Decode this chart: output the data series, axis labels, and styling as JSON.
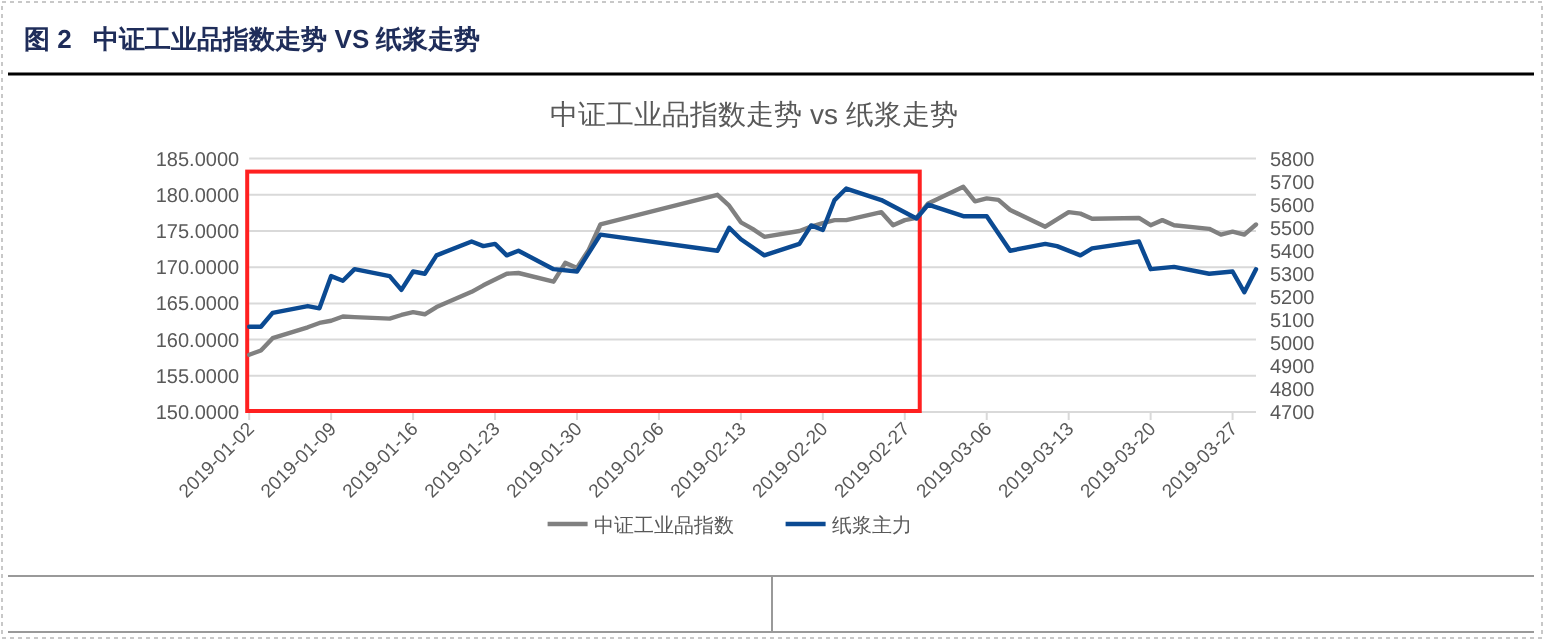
{
  "chart_data": {
    "type": "line",
    "title": "图 2   中证工业品指数走势 VS 纸浆走势",
    "subtitle": "中证工业品指数走势 vs 纸浆走势",
    "xlim": [
      "2019-01-02",
      "2019-03-29"
    ],
    "xticks": [
      "2019-01-02",
      "2019-01-09",
      "2019-01-16",
      "2019-01-23",
      "2019-01-30",
      "2019-02-06",
      "2019-02-13",
      "2019-02-20",
      "2019-02-27",
      "2019-03-06",
      "2019-03-13",
      "2019-03-20",
      "2019-03-27"
    ],
    "ylim": [
      150,
      185
    ],
    "yticks": [
      {
        "value": 150,
        "label": "150.0000"
      },
      {
        "value": 155,
        "label": "155.0000"
      },
      {
        "value": 160,
        "label": "160.0000"
      },
      {
        "value": 165,
        "label": "165.0000"
      },
      {
        "value": 170,
        "label": "170.0000"
      },
      {
        "value": 175,
        "label": "175.0000"
      },
      {
        "value": 180,
        "label": "180.0000"
      },
      {
        "value": 185,
        "label": "185.0000"
      }
    ],
    "y2lim": [
      4700,
      5800
    ],
    "y2ticks": [
      4700,
      4800,
      4900,
      5000,
      5100,
      5200,
      5300,
      5400,
      5500,
      5600,
      5700,
      5800
    ],
    "grid": "y",
    "legend": "bottom",
    "marker": "none",
    "line_style": "solid",
    "series": [
      {
        "name": "中证工业品指数",
        "color": "#808080",
        "x": [
          "2019-01-02",
          "2019-01-03",
          "2019-01-04",
          "2019-01-07",
          "2019-01-08",
          "2019-01-09",
          "2019-01-10",
          "2019-01-11",
          "2019-01-14",
          "2019-01-15",
          "2019-01-16",
          "2019-01-17",
          "2019-01-18",
          "2019-01-21",
          "2019-01-22",
          "2019-01-23",
          "2019-01-24",
          "2019-01-25",
          "2019-01-28",
          "2019-01-29",
          "2019-01-30",
          "2019-01-31",
          "2019-02-01",
          "2019-02-11",
          "2019-02-12",
          "2019-02-13",
          "2019-02-14",
          "2019-02-15",
          "2019-02-18",
          "2019-02-19",
          "2019-02-20",
          "2019-02-21",
          "2019-02-22",
          "2019-02-25",
          "2019-02-26",
          "2019-02-27",
          "2019-02-28",
          "2019-03-01",
          "2019-03-04",
          "2019-03-05",
          "2019-03-06",
          "2019-03-07",
          "2019-03-08",
          "2019-03-11",
          "2019-03-13",
          "2019-03-14",
          "2019-03-15",
          "2019-03-19",
          "2019-03-20",
          "2019-03-21",
          "2019-03-22",
          "2019-03-25",
          "2019-03-26",
          "2019-03-27",
          "2019-03-28",
          "2019-03-29"
        ],
        "values": [
          157.9,
          158.5,
          160.2,
          161.7,
          162.3,
          162.6,
          163.2,
          163.1,
          162.9,
          163.4,
          163.8,
          163.5,
          164.5,
          166.6,
          167.5,
          168.3,
          169.1,
          169.2,
          168.0,
          170.6,
          169.9,
          172.4,
          175.9,
          180.0,
          178.5,
          176.2,
          175.3,
          174.2,
          175.0,
          175.6,
          176.1,
          176.5,
          176.5,
          177.6,
          175.8,
          176.5,
          176.8,
          178.8,
          181.1,
          179.1,
          179.5,
          179.3,
          177.9,
          175.6,
          177.6,
          177.4,
          176.7,
          176.8,
          175.8,
          176.5,
          175.8,
          175.3,
          174.5,
          174.9,
          174.5,
          175.9
        ]
      },
      {
        "name": "纸浆主力",
        "color": "#0b4a92",
        "axis": "y2",
        "x": [
          "2019-01-02",
          "2019-01-03",
          "2019-01-04",
          "2019-01-07",
          "2019-01-08",
          "2019-01-09",
          "2019-01-10",
          "2019-01-11",
          "2019-01-14",
          "2019-01-15",
          "2019-01-16",
          "2019-01-17",
          "2019-01-18",
          "2019-01-21",
          "2019-01-22",
          "2019-01-23",
          "2019-01-24",
          "2019-01-25",
          "2019-01-28",
          "2019-01-30",
          "2019-02-01",
          "2019-02-11",
          "2019-02-12",
          "2019-02-13",
          "2019-02-15",
          "2019-02-18",
          "2019-02-19",
          "2019-02-20",
          "2019-02-21",
          "2019-02-22",
          "2019-02-25",
          "2019-02-28",
          "2019-03-01",
          "2019-03-04",
          "2019-03-06",
          "2019-03-08",
          "2019-03-11",
          "2019-03-12",
          "2019-03-14",
          "2019-03-15",
          "2019-03-19",
          "2019-03-20",
          "2019-03-22",
          "2019-03-25",
          "2019-03-27",
          "2019-03-28",
          "2019-03-29"
        ],
        "values": [
          5070,
          5070,
          5130,
          5160,
          5150,
          5290,
          5270,
          5320,
          5290,
          5230,
          5310,
          5300,
          5380,
          5440,
          5420,
          5430,
          5380,
          5400,
          5320,
          5310,
          5470,
          5400,
          5500,
          5450,
          5380,
          5430,
          5510,
          5490,
          5620,
          5670,
          5620,
          5540,
          5600,
          5550,
          5550,
          5400,
          5430,
          5420,
          5380,
          5410,
          5440,
          5320,
          5330,
          5300,
          5310,
          5220,
          5320
        ]
      }
    ]
  }
}
